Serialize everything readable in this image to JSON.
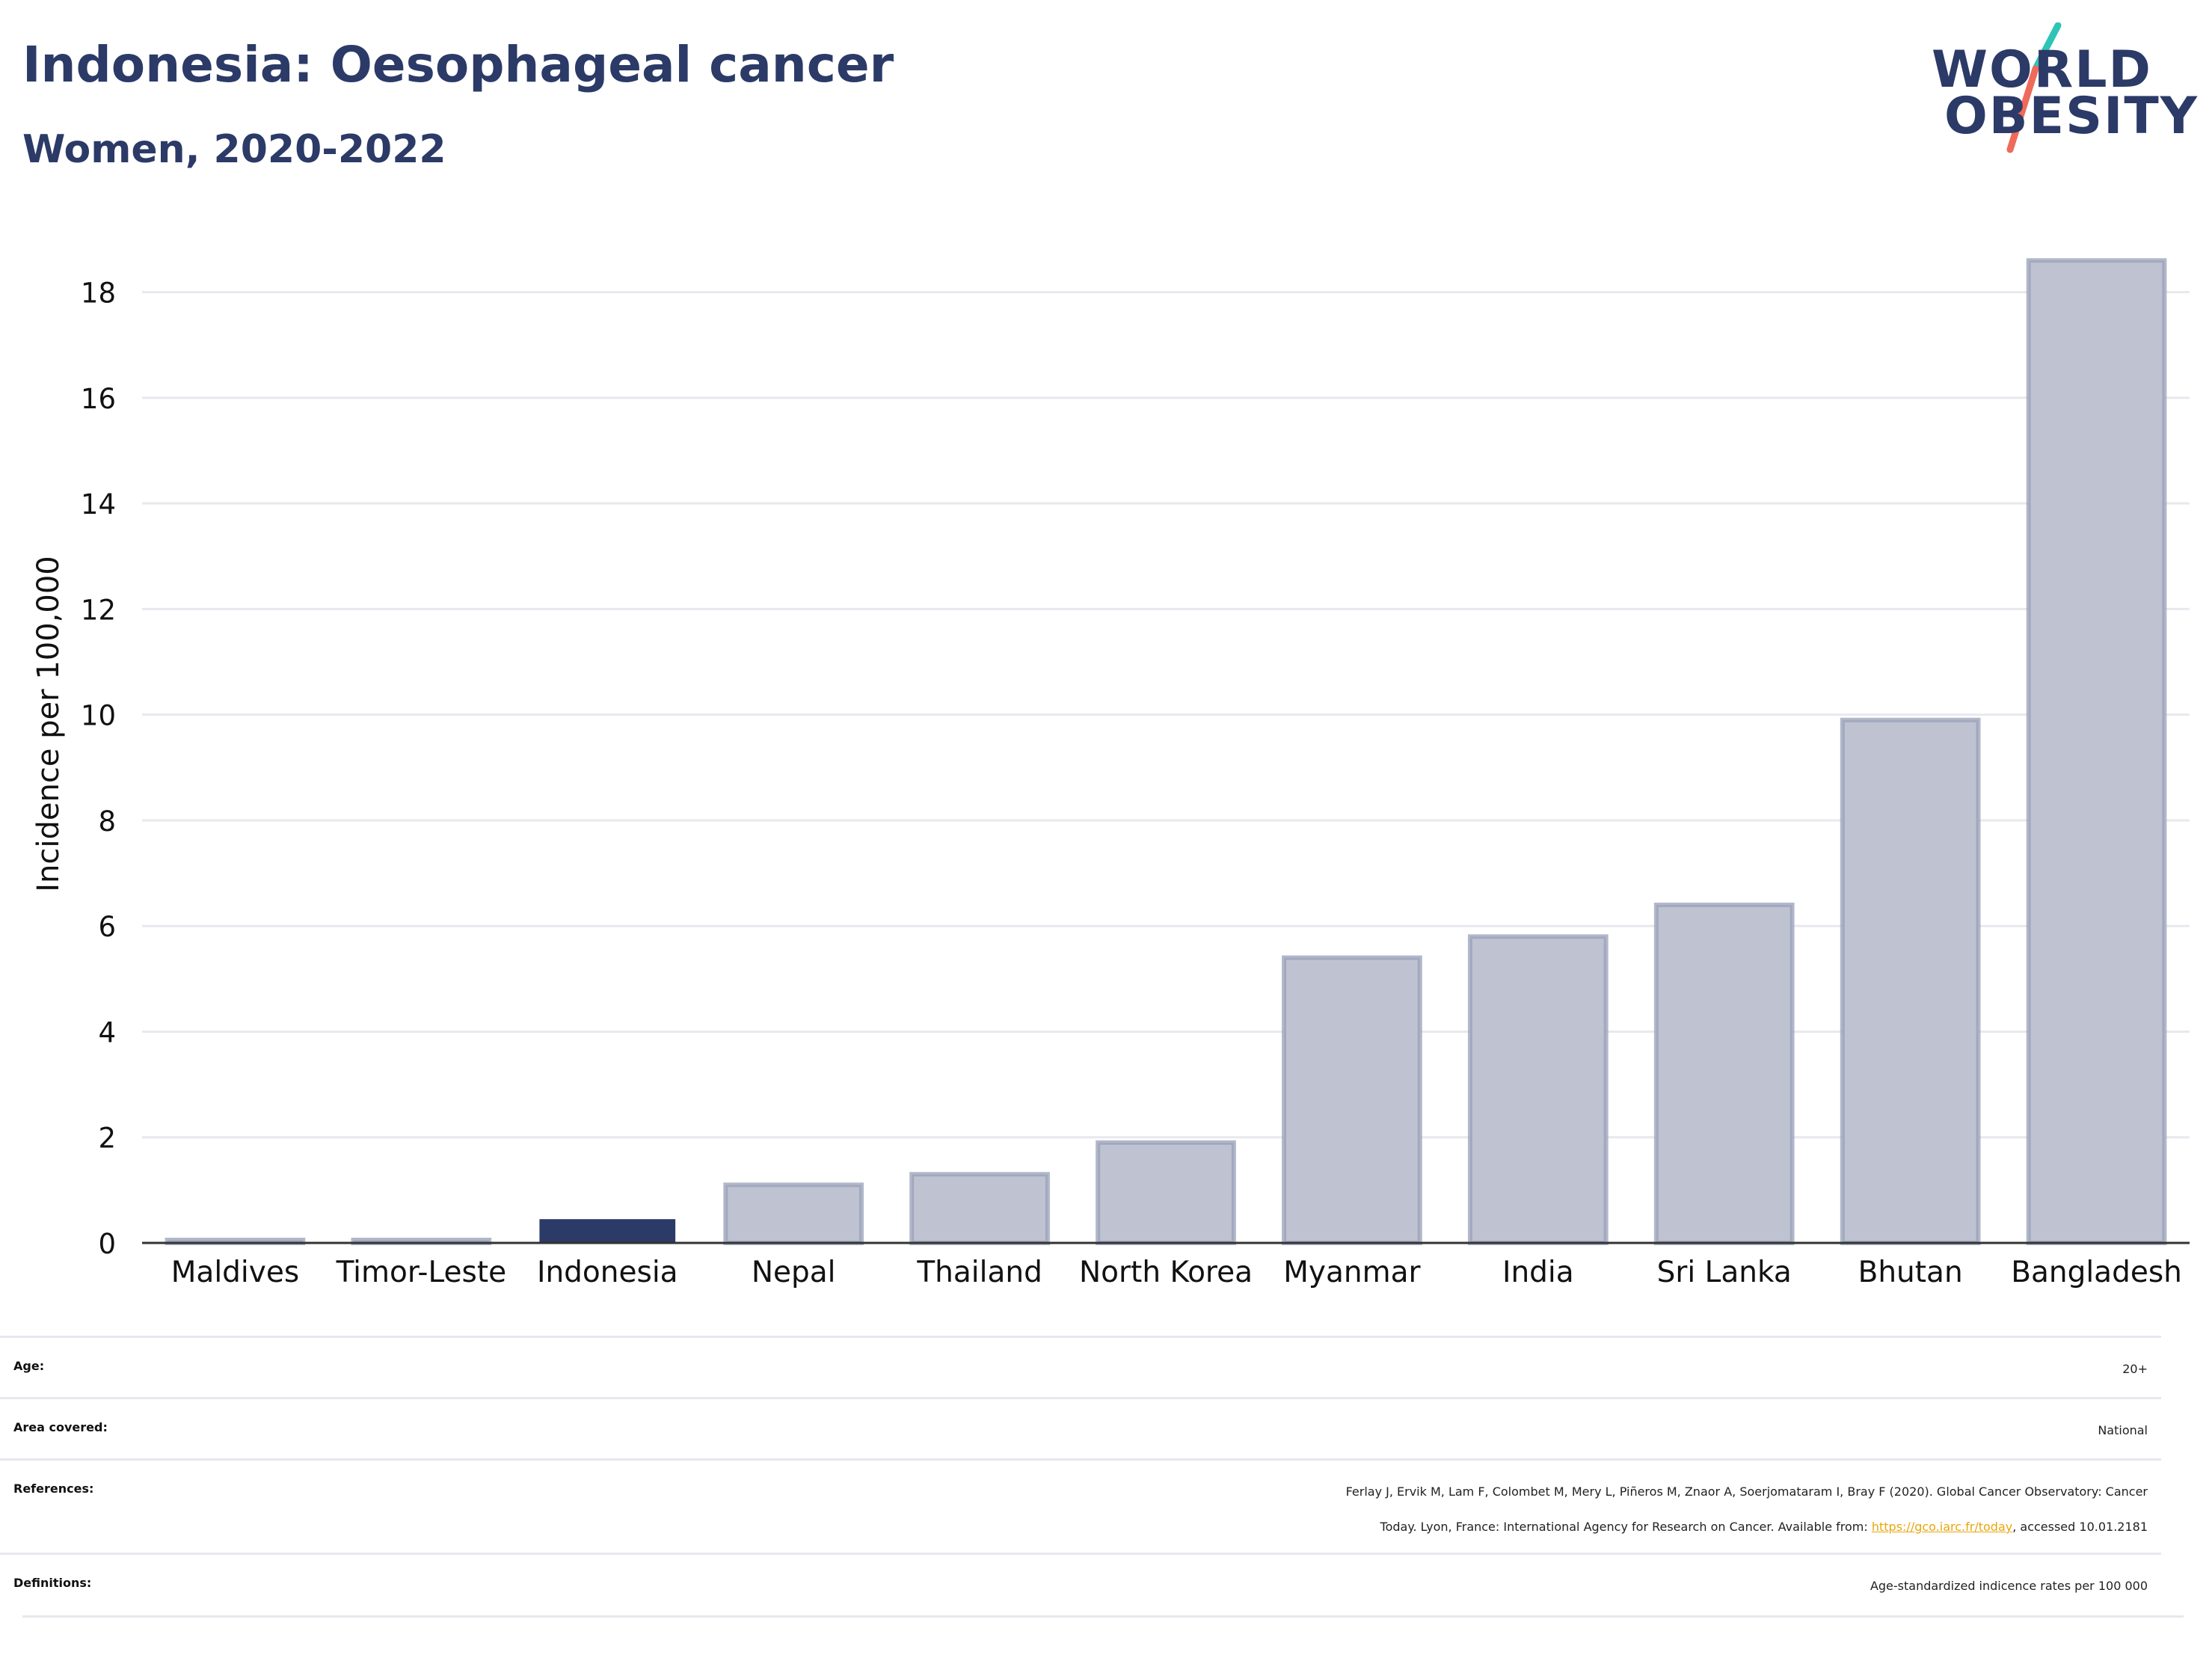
{
  "header": {
    "title": "Indonesia: Oesophageal cancer",
    "subtitle": "Women, 2020-2022"
  },
  "logo": {
    "line1": "WORLD",
    "line2": "OBESITY",
    "colors": {
      "text": "#2b3a67",
      "slash_top": "#2ec4b6",
      "slash_bottom": "#ef6a5a"
    }
  },
  "chart_data": {
    "type": "bar",
    "title": "",
    "xlabel": "",
    "ylabel": "Incidence per 100,000",
    "categories": [
      "Maldives",
      "Timor-Leste",
      "Indonesia",
      "Nepal",
      "Thailand",
      "North Korea",
      "Myanmar",
      "India",
      "Sri Lanka",
      "Bhutan",
      "Bangladesh"
    ],
    "values": [
      0.05,
      0.05,
      0.45,
      1.1,
      1.3,
      1.9,
      5.4,
      5.8,
      6.4,
      9.9,
      18.6
    ],
    "highlight": "Indonesia",
    "ylim": [
      0,
      19
    ],
    "yticks": [
      0,
      2,
      4,
      6,
      8,
      10,
      12,
      14,
      16,
      18
    ],
    "grid": true,
    "colors": {
      "highlight": "#2b3a67",
      "other": "#bfc3d1",
      "other_edge": "#98a0b8",
      "grid": "#e8e9ee",
      "axis": "#333333"
    }
  },
  "meta": {
    "age_label": "Age:",
    "age_value": "20+",
    "area_label": "Area covered:",
    "area_value": "National",
    "references_label": "References:",
    "references_line1": "Ferlay J, Ervik M, Lam F, Colombet M, Mery L, Piñeros M, Znaor A, Soerjomataram I, Bray F (2020). Global Cancer Observatory: Cancer",
    "references_line2_pre": "Today. Lyon, France: International Agency for Research on Cancer. Available from: ",
    "references_link": "https://gco.iarc.fr/today",
    "references_line2_post": ", accessed 10.01.2181",
    "definitions_label": "Definitions:",
    "definitions_value": "Age-standardized indicence rates per 100 000"
  }
}
